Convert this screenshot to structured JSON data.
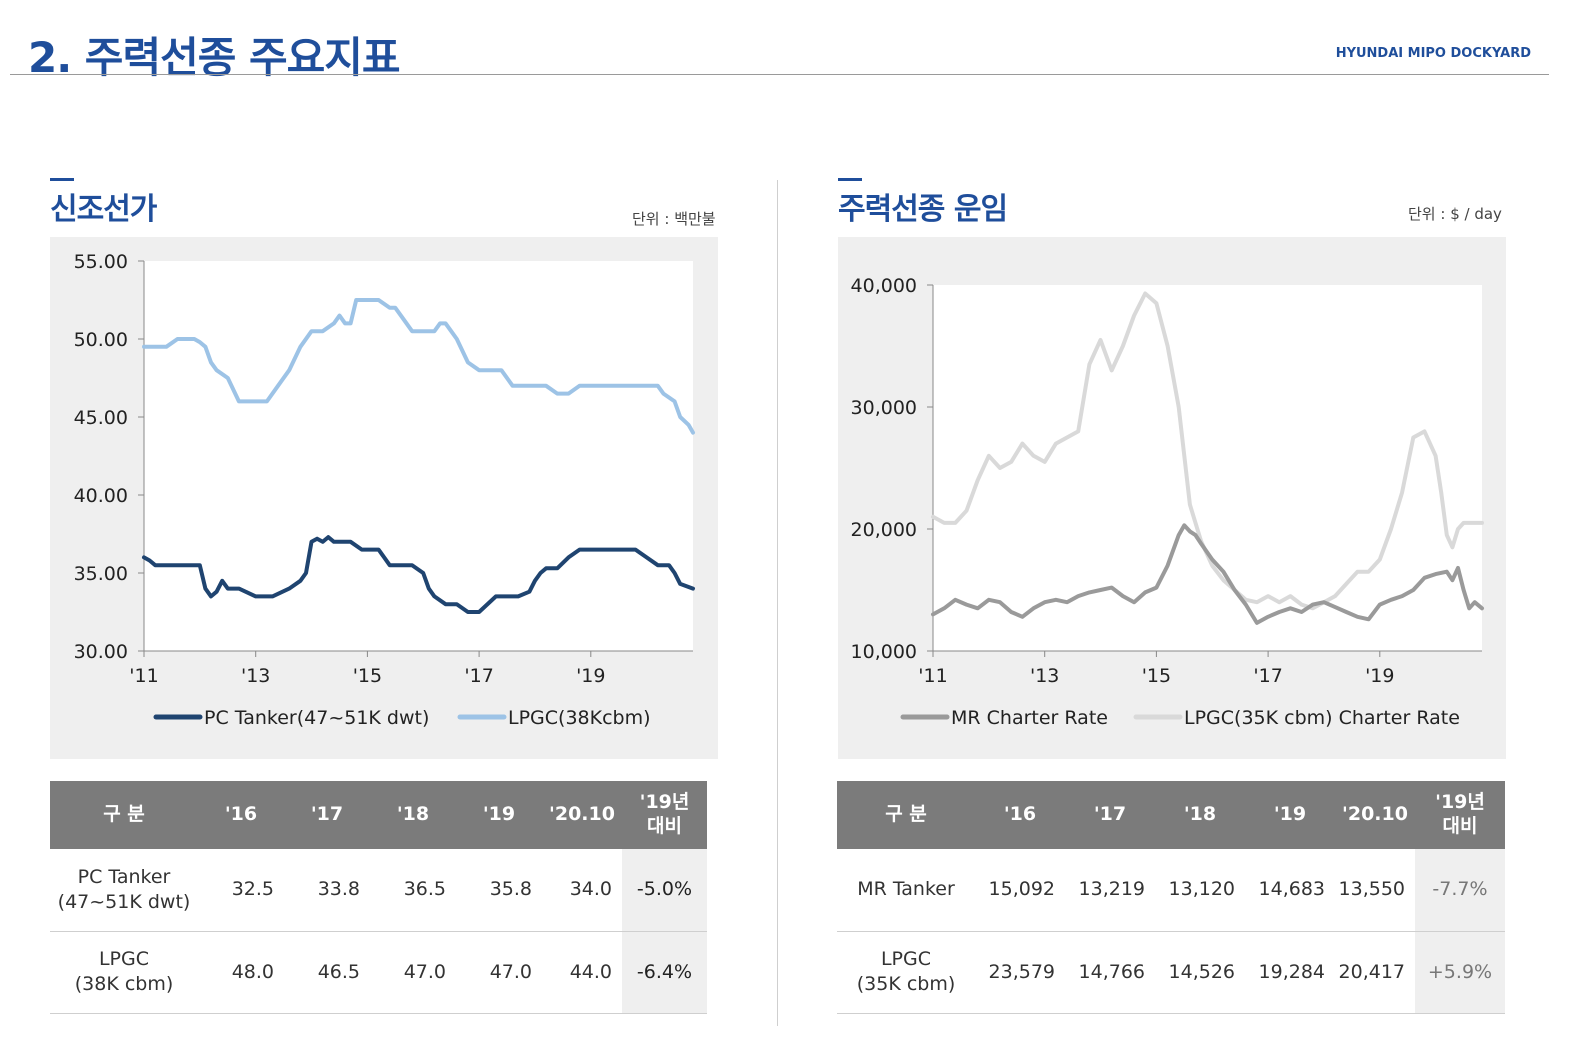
{
  "header": {
    "title": "2. 주력선종 주요지표",
    "brand": "HYUNDAI MIPO DOCKYARD"
  },
  "left": {
    "title": "신조선가",
    "unit": "단위 : 백만불",
    "table": {
      "headers": [
        "구 분",
        "'16",
        "'17",
        "'18",
        "'19",
        "'20.10",
        "'19년 대비"
      ],
      "rows": [
        {
          "label": "PC Tanker (47~51K dwt)",
          "label_l1": "PC Tanker",
          "label_l2": "(47~51K dwt)",
          "values": [
            "32.5",
            "33.8",
            "36.5",
            "35.8",
            "34.0"
          ],
          "yoy": "-5.0%"
        },
        {
          "label": "LPGC (38K cbm)",
          "label_l1": "LPGC",
          "label_l2": "(38K cbm)",
          "values": [
            "48.0",
            "46.5",
            "47.0",
            "47.0",
            "44.0"
          ],
          "yoy": "-6.4%"
        }
      ]
    }
  },
  "right": {
    "title": "주력선종 운임",
    "unit": "단위 :  $ / day",
    "table": {
      "headers": [
        "구 분",
        "'16",
        "'17",
        "'18",
        "'19",
        "'20.10",
        "'19년 대비"
      ],
      "rows": [
        {
          "label": "MR Tanker",
          "label_l1": "MR Tanker",
          "label_l2": "",
          "values": [
            "15,092",
            "13,219",
            "13,120",
            "14,683",
            "13,550"
          ],
          "yoy": "-7.7%"
        },
        {
          "label": "LPGC (35K cbm)",
          "label_l1": "LPGC",
          "label_l2": "(35K cbm)",
          "values": [
            "23,579",
            "14,766",
            "14,526",
            "19,284",
            "20,417"
          ],
          "yoy": "+5.9%"
        }
      ]
    }
  },
  "chart_data": [
    {
      "type": "line",
      "ylim": [
        30,
        55
      ],
      "xlim": [
        2011,
        2020.83
      ],
      "ytick_labels": [
        "55.00",
        "50.00",
        "45.00",
        "40.00",
        "35.00",
        "30.00"
      ],
      "yticks": [
        55,
        50,
        45,
        40,
        35,
        30
      ],
      "xtick_labels": [
        "'11",
        "'13",
        "'15",
        "'17",
        "'19"
      ],
      "xticks": [
        2011,
        2013,
        2015,
        2017,
        2019
      ],
      "legend": "bottom",
      "series": [
        {
          "name": "PC Tanker(47~51K dwt)",
          "color": "#1f4470",
          "x": [
            2011.0,
            2011.1,
            2011.2,
            2011.5,
            2011.7,
            2011.9,
            2012.0,
            2012.1,
            2012.2,
            2012.3,
            2012.4,
            2012.5,
            2012.7,
            2013.0,
            2013.3,
            2013.6,
            2013.8,
            2013.9,
            2014.0,
            2014.1,
            2014.2,
            2014.3,
            2014.4,
            2014.5,
            2014.7,
            2014.9,
            2015.0,
            2015.2,
            2015.4,
            2015.6,
            2015.8,
            2016.0,
            2016.1,
            2016.2,
            2016.4,
            2016.6,
            2016.8,
            2016.9,
            2017.0,
            2017.3,
            2017.5,
            2017.7,
            2017.9,
            2018.0,
            2018.1,
            2018.2,
            2018.4,
            2018.6,
            2018.8,
            2018.9,
            2019.0,
            2019.3,
            2019.6,
            2019.8,
            2020.0,
            2020.2,
            2020.4,
            2020.5,
            2020.6,
            2020.83
          ],
          "values": [
            36.0,
            35.8,
            35.5,
            35.5,
            35.5,
            35.5,
            35.5,
            34.0,
            33.5,
            33.8,
            34.5,
            34.0,
            34.0,
            33.5,
            33.5,
            34.0,
            34.5,
            35.0,
            37.0,
            37.2,
            37.0,
            37.3,
            37.0,
            37.0,
            37.0,
            36.5,
            36.5,
            36.5,
            35.5,
            35.5,
            35.5,
            35.0,
            34.0,
            33.5,
            33.0,
            33.0,
            32.5,
            32.5,
            32.5,
            33.5,
            33.5,
            33.5,
            33.8,
            34.5,
            35.0,
            35.3,
            35.3,
            36.0,
            36.5,
            36.5,
            36.5,
            36.5,
            36.5,
            36.5,
            36.0,
            35.5,
            35.5,
            35.0,
            34.3,
            34.0
          ]
        },
        {
          "name": "LPGC(38Kcbm)",
          "color": "#9dc3e6",
          "x": [
            2011.0,
            2011.2,
            2011.4,
            2011.6,
            2011.8,
            2011.9,
            2012.0,
            2012.1,
            2012.2,
            2012.3,
            2012.5,
            2012.7,
            2013.0,
            2013.2,
            2013.4,
            2013.6,
            2013.8,
            2014.0,
            2014.2,
            2014.4,
            2014.5,
            2014.6,
            2014.7,
            2014.8,
            2015.0,
            2015.2,
            2015.4,
            2015.5,
            2015.6,
            2015.8,
            2016.0,
            2016.1,
            2016.2,
            2016.3,
            2016.4,
            2016.5,
            2016.6,
            2016.8,
            2017.0,
            2017.2,
            2017.4,
            2017.6,
            2017.8,
            2018.0,
            2018.2,
            2018.4,
            2018.6,
            2018.8,
            2019.0,
            2019.3,
            2019.6,
            2019.9,
            2020.1,
            2020.2,
            2020.3,
            2020.5,
            2020.6,
            2020.75,
            2020.83
          ],
          "values": [
            49.5,
            49.5,
            49.5,
            50.0,
            50.0,
            50.0,
            49.8,
            49.5,
            48.5,
            48.0,
            47.5,
            46.0,
            46.0,
            46.0,
            47.0,
            48.0,
            49.5,
            50.5,
            50.5,
            51.0,
            51.5,
            51.0,
            51.0,
            52.5,
            52.5,
            52.5,
            52.0,
            52.0,
            51.5,
            50.5,
            50.5,
            50.5,
            50.5,
            51.0,
            51.0,
            50.5,
            50.0,
            48.5,
            48.0,
            48.0,
            48.0,
            47.0,
            47.0,
            47.0,
            47.0,
            46.5,
            46.5,
            47.0,
            47.0,
            47.0,
            47.0,
            47.0,
            47.0,
            47.0,
            46.5,
            46.0,
            45.0,
            44.5,
            44.0
          ]
        }
      ]
    },
    {
      "type": "line",
      "ylim": [
        10000,
        40000
      ],
      "xlim": [
        2011,
        2020.83
      ],
      "ytick_labels": [
        "40,000",
        "30,000",
        "20,000",
        "10,000"
      ],
      "yticks": [
        40000,
        30000,
        20000,
        10000
      ],
      "xtick_labels": [
        "'11",
        "'13",
        "'15",
        "'17",
        "'19"
      ],
      "xticks": [
        2011,
        2013,
        2015,
        2017,
        2019
      ],
      "legend": "bottom",
      "series": [
        {
          "name": "MR Charter Rate",
          "color": "#9a9a9a",
          "x": [
            2011.0,
            2011.2,
            2011.4,
            2011.6,
            2011.8,
            2012.0,
            2012.2,
            2012.4,
            2012.6,
            2012.8,
            2013.0,
            2013.2,
            2013.4,
            2013.6,
            2013.8,
            2014.0,
            2014.2,
            2014.4,
            2014.6,
            2014.8,
            2015.0,
            2015.2,
            2015.4,
            2015.5,
            2015.6,
            2015.7,
            2015.8,
            2016.0,
            2016.2,
            2016.4,
            2016.6,
            2016.8,
            2017.0,
            2017.2,
            2017.4,
            2017.6,
            2017.8,
            2018.0,
            2018.2,
            2018.4,
            2018.6,
            2018.8,
            2019.0,
            2019.2,
            2019.4,
            2019.6,
            2019.8,
            2020.0,
            2020.2,
            2020.3,
            2020.4,
            2020.5,
            2020.6,
            2020.7,
            2020.83
          ],
          "values": [
            13000,
            13500,
            14200,
            13800,
            13500,
            14200,
            14000,
            13200,
            12800,
            13500,
            14000,
            14200,
            14000,
            14500,
            14800,
            15000,
            15200,
            14500,
            14000,
            14800,
            15200,
            17000,
            19500,
            20300,
            19800,
            19500,
            18800,
            17500,
            16500,
            15000,
            13800,
            12300,
            12800,
            13200,
            13500,
            13200,
            13800,
            14000,
            13600,
            13200,
            12800,
            12600,
            13800,
            14200,
            14500,
            15000,
            16000,
            16300,
            16500,
            15800,
            16800,
            15000,
            13500,
            14000,
            13500
          ]
        },
        {
          "name": "LPGC(35K cbm) Charter Rate",
          "color": "#d9d9d9",
          "x": [
            2011.0,
            2011.2,
            2011.4,
            2011.6,
            2011.8,
            2012.0,
            2012.2,
            2012.4,
            2012.6,
            2012.8,
            2013.0,
            2013.2,
            2013.4,
            2013.6,
            2013.8,
            2014.0,
            2014.2,
            2014.4,
            2014.6,
            2014.8,
            2015.0,
            2015.2,
            2015.4,
            2015.5,
            2015.6,
            2015.7,
            2015.8,
            2016.0,
            2016.2,
            2016.4,
            2016.6,
            2016.8,
            2017.0,
            2017.2,
            2017.4,
            2017.6,
            2017.8,
            2018.0,
            2018.2,
            2018.4,
            2018.6,
            2018.8,
            2019.0,
            2019.2,
            2019.4,
            2019.6,
            2019.8,
            2020.0,
            2020.1,
            2020.2,
            2020.3,
            2020.4,
            2020.5,
            2020.6,
            2020.7,
            2020.83
          ],
          "values": [
            21000,
            20500,
            20500,
            21500,
            24000,
            26000,
            25000,
            25500,
            27000,
            26000,
            25500,
            27000,
            27500,
            28000,
            33500,
            35500,
            33000,
            35000,
            37500,
            39300,
            38500,
            35000,
            30000,
            26000,
            22000,
            20500,
            19000,
            17000,
            15800,
            15000,
            14200,
            14000,
            14500,
            14000,
            14500,
            13800,
            13500,
            14000,
            14500,
            15500,
            16500,
            16500,
            17500,
            20000,
            23000,
            27500,
            28000,
            26000,
            23000,
            19500,
            18500,
            20000,
            20500,
            20500,
            20500,
            20500
          ]
        }
      ]
    }
  ]
}
